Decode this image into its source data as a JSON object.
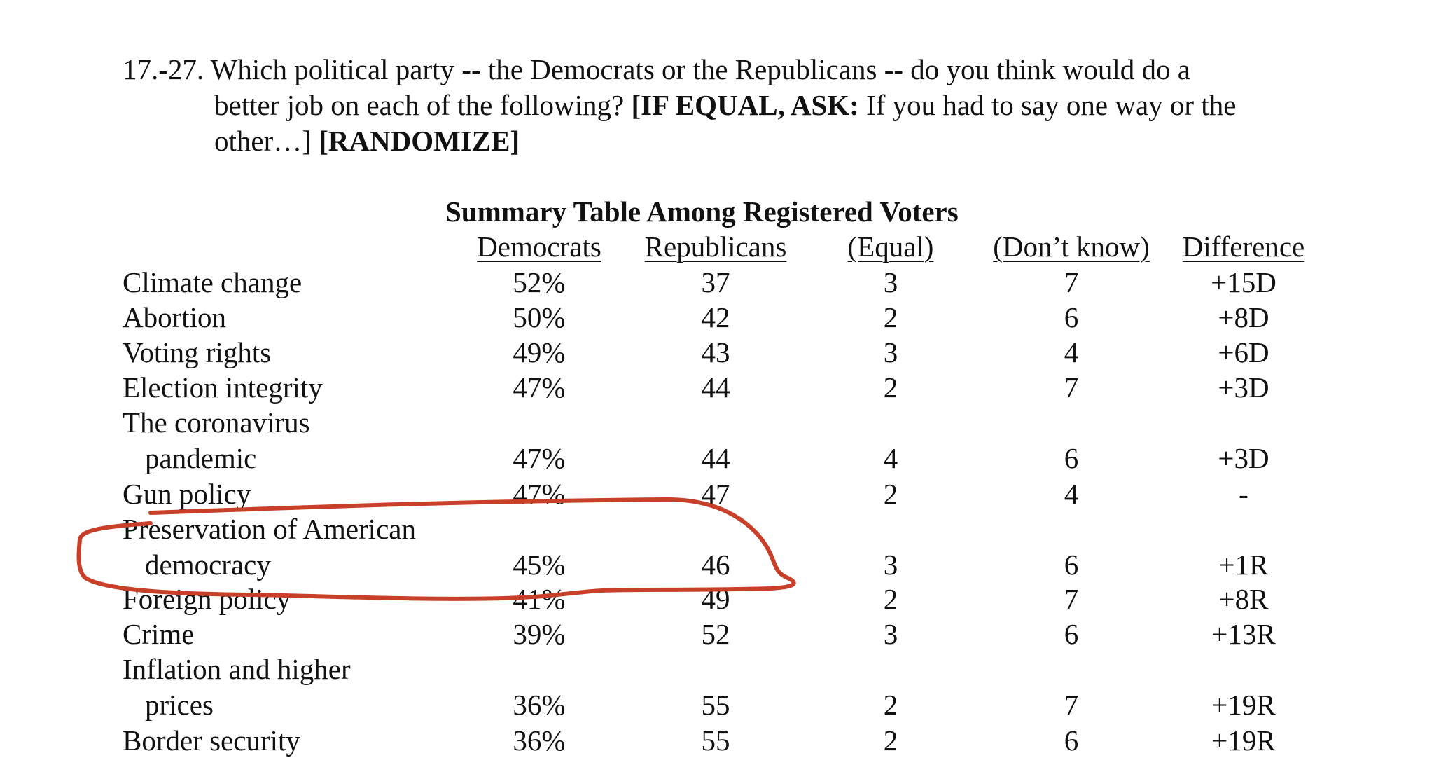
{
  "question": {
    "line1": "17.-27. Which political party -- the Democrats or the Republicans -- do you think would do a",
    "line2_plain": "better job on each of the following? ",
    "line2_bold": "[IF EQUAL, ASK:",
    "line2_tail": " If you had to say one way or the",
    "line3_plain": "other…] ",
    "line3_bold": "[RANDOMIZE]"
  },
  "table": {
    "title": "Summary Table Among Registered Voters",
    "headers": [
      "Democrats",
      "Republicans",
      "(Equal)",
      "(Don’t know)",
      "Difference"
    ],
    "rows": [
      {
        "label": "Climate change",
        "sub": "",
        "dem": "52%",
        "rep": "37",
        "equal": "3",
        "dk": "7",
        "diff": "+15D"
      },
      {
        "label": "Abortion",
        "sub": "",
        "dem": "50%",
        "rep": "42",
        "equal": "2",
        "dk": "6",
        "diff": "+8D"
      },
      {
        "label": "Voting rights",
        "sub": "",
        "dem": "49%",
        "rep": "43",
        "equal": "3",
        "dk": "4",
        "diff": "+6D"
      },
      {
        "label": "Election integrity",
        "sub": "",
        "dem": "47%",
        "rep": "44",
        "equal": "2",
        "dk": "7",
        "diff": "+3D"
      },
      {
        "label": "The coronavirus",
        "sub": "pandemic",
        "dem": "47%",
        "rep": "44",
        "equal": "4",
        "dk": "6",
        "diff": "+3D"
      },
      {
        "label": "Gun policy",
        "sub": "",
        "dem": "47%",
        "rep": "47",
        "equal": "2",
        "dk": "4",
        "diff": "-"
      },
      {
        "label": "Preservation of American",
        "sub": "democracy",
        "dem": "45%",
        "rep": "46",
        "equal": "3",
        "dk": "6",
        "diff": "+1R"
      },
      {
        "label": "Foreign policy",
        "sub": "",
        "dem": "41%",
        "rep": "49",
        "equal": "2",
        "dk": "7",
        "diff": "+8R"
      },
      {
        "label": "Crime",
        "sub": "",
        "dem": "39%",
        "rep": "52",
        "equal": "3",
        "dk": "6",
        "diff": "+13R"
      },
      {
        "label": "Inflation and higher",
        "sub": "prices",
        "dem": "36%",
        "rep": "55",
        "equal": "2",
        "dk": "7",
        "diff": "+19R"
      },
      {
        "label": "Border security",
        "sub": "",
        "dem": "36%",
        "rep": "55",
        "equal": "2",
        "dk": "6",
        "diff": "+19R"
      }
    ]
  },
  "annotation": {
    "color": "#c8402a",
    "highlighted_row": "Preservation of American democracy"
  }
}
